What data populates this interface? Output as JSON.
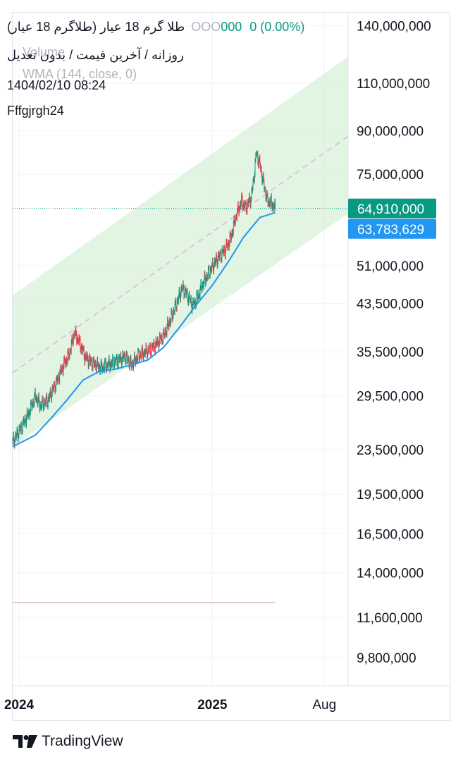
{
  "header": {
    "symbol": "طلا گرم 18 عیار (طلاگرم 18 عیار)",
    "change": "0 (0.00%)",
    "ghost_price": "OOO",
    "ghost_price_tail": "000",
    "settings": "روزانه / آخرین قیمت / بدون تعدیل",
    "ghost_volume": "Volume",
    "ghost_indicator": "WMA (144, close, 0)",
    "date": "1404/02/10 08:24",
    "author": "Fffgjrgh24"
  },
  "footer": {
    "brand": "TradingView"
  },
  "colors": {
    "up": "#089981",
    "down": "#f23645",
    "wma": "#2196f3",
    "channel_fill": "#d8f0d8",
    "midline": "#d9b8e0",
    "grid": "#f0f3fa"
  },
  "chart_data": {
    "type": "candlestick",
    "scale": "log",
    "ylim": [
      8700000,
      148000000
    ],
    "y_ticks": [
      140000000,
      110000000,
      90000000,
      75000000,
      51000000,
      43500000,
      35500000,
      29500000,
      23500000,
      19500000,
      16500000,
      14000000,
      11600000,
      9800000
    ],
    "y_tick_labels": [
      "140,000,000",
      "110,000,000",
      "90,000,000",
      "75,000,000",
      "51,000,000",
      "43,500,000",
      "35,500,000",
      "29,500,000",
      "23,500,000",
      "19,500,000",
      "16,500,000",
      "14,000,000",
      "11,600,000",
      "9,800,000"
    ],
    "x_ticks": [
      {
        "date": "2024-01-01",
        "label": "2024",
        "bold": true
      },
      {
        "date": "2025-01-01",
        "label": "2025",
        "bold": true
      },
      {
        "date": "2025-08-01",
        "label": "Aug",
        "bold": false
      }
    ],
    "x_range": [
      "2023-12-20",
      "2025-09-15"
    ],
    "last_price": {
      "value": 64910000,
      "label": "64,910,000"
    },
    "wma_last": {
      "value": 63783629,
      "label": "63,783,629"
    },
    "close_series": [
      [
        "2023-12-20",
        24300000
      ],
      [
        "2024-01-05",
        25800000
      ],
      [
        "2024-01-20",
        27500000
      ],
      [
        "2024-02-01",
        29500000
      ],
      [
        "2024-02-10",
        28300000
      ],
      [
        "2024-02-25",
        29000000
      ],
      [
        "2024-03-10",
        31000000
      ],
      [
        "2024-03-25",
        33500000
      ],
      [
        "2024-04-05",
        35200000
      ],
      [
        "2024-04-15",
        38500000
      ],
      [
        "2024-04-25",
        36800000
      ],
      [
        "2024-05-05",
        34700000
      ],
      [
        "2024-05-20",
        33800000
      ],
      [
        "2024-06-05",
        33200000
      ],
      [
        "2024-06-20",
        33700000
      ],
      [
        "2024-07-05",
        34200000
      ],
      [
        "2024-07-20",
        34800000
      ],
      [
        "2024-08-01",
        33600000
      ],
      [
        "2024-08-15",
        35000000
      ],
      [
        "2024-09-01",
        35600000
      ],
      [
        "2024-09-15",
        36500000
      ],
      [
        "2024-10-01",
        38000000
      ],
      [
        "2024-10-15",
        41000000
      ],
      [
        "2024-10-25",
        43500000
      ],
      [
        "2024-11-05",
        46500000
      ],
      [
        "2024-11-15",
        45000000
      ],
      [
        "2024-11-25",
        43000000
      ],
      [
        "2024-12-05",
        45000000
      ],
      [
        "2024-12-15",
        47500000
      ],
      [
        "2024-12-25",
        49500000
      ],
      [
        "2025-01-10",
        52500000
      ],
      [
        "2025-01-25",
        54500000
      ],
      [
        "2025-02-05",
        57500000
      ],
      [
        "2025-02-15",
        63000000
      ],
      [
        "2025-02-25",
        67000000
      ],
      [
        "2025-03-05",
        65000000
      ],
      [
        "2025-03-15",
        68000000
      ],
      [
        "2025-03-20",
        73000000
      ],
      [
        "2025-03-25",
        82000000
      ],
      [
        "2025-04-01",
        78000000
      ],
      [
        "2025-04-08",
        72000000
      ],
      [
        "2025-04-15",
        67000000
      ],
      [
        "2025-04-22",
        66500000
      ],
      [
        "2025-04-30",
        64910000
      ]
    ],
    "wma_series": [
      [
        "2023-12-20",
        23800000
      ],
      [
        "2024-02-01",
        25000000
      ],
      [
        "2024-03-01",
        26800000
      ],
      [
        "2024-04-01",
        29000000
      ],
      [
        "2024-05-01",
        31500000
      ],
      [
        "2024-06-01",
        32700000
      ],
      [
        "2024-07-01",
        33000000
      ],
      [
        "2024-08-01",
        33600000
      ],
      [
        "2024-09-01",
        34300000
      ],
      [
        "2024-10-01",
        36200000
      ],
      [
        "2024-11-01",
        39500000
      ],
      [
        "2024-12-01",
        43200000
      ],
      [
        "2025-01-01",
        47000000
      ],
      [
        "2025-02-01",
        52000000
      ],
      [
        "2025-03-01",
        57500000
      ],
      [
        "2025-04-01",
        62500000
      ],
      [
        "2025-04-30",
        63783629
      ]
    ],
    "channel": {
      "upper": [
        [
          "2023-12-20",
          45000000
        ],
        [
          "2025-09-15",
          123000000
        ]
      ],
      "middle": [
        [
          "2023-12-20",
          32500000
        ],
        [
          "2025-09-15",
          88000000
        ]
      ],
      "lower": [
        [
          "2023-12-20",
          23800000
        ],
        [
          "2025-09-15",
          63500000
        ]
      ]
    },
    "volume_line_end": "2025-04-30"
  }
}
